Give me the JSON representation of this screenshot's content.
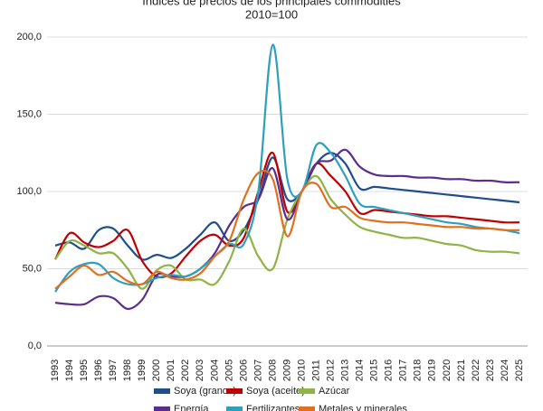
{
  "chart_data": {
    "type": "line",
    "title": "Índices de precios de los principales commodities",
    "subtitle": "2010=100",
    "categories": [
      "1993",
      "1994",
      "1995",
      "1996",
      "1997",
      "1998",
      "1999",
      "2000",
      "2001",
      "2002",
      "2003",
      "2004",
      "2005",
      "2006",
      "2007",
      "2008",
      "2009",
      "2010",
      "2011",
      "2012",
      "2013",
      "2014",
      "2015",
      "2016",
      "2017",
      "2018",
      "2019",
      "2020",
      "2021",
      "2022",
      "2023",
      "2024",
      "2025"
    ],
    "ylim": [
      0,
      200
    ],
    "yticks": [
      {
        "value": 0,
        "label": "0,0"
      },
      {
        "value": 50,
        "label": "50,0"
      },
      {
        "value": 100,
        "label": "100,0"
      },
      {
        "value": 150,
        "label": "150,0"
      },
      {
        "value": 200,
        "label": "200,0"
      }
    ],
    "grid": true,
    "legend": "bottom",
    "series": [
      {
        "name": "Soya (granos)",
        "color": "#1f4e8c",
        "values": [
          65,
          67,
          63,
          75,
          76,
          65,
          56,
          59,
          57,
          63,
          72,
          80,
          68,
          75,
          95,
          122,
          95,
          100,
          118,
          125,
          118,
          102,
          103,
          102,
          101,
          100,
          99,
          98,
          97,
          96,
          95,
          94,
          93
        ]
      },
      {
        "name": "Soya (aceite)",
        "color": "#c00000",
        "values": [
          56,
          73,
          67,
          64,
          68,
          75,
          55,
          45,
          47,
          58,
          68,
          72,
          65,
          70,
          100,
          125,
          87,
          100,
          118,
          110,
          100,
          86,
          88,
          87,
          86,
          85,
          84,
          84,
          83,
          82,
          81,
          80,
          80
        ]
      },
      {
        "name": "Azúcar",
        "color": "#8db444",
        "values": [
          56,
          68,
          65,
          60,
          60,
          50,
          37,
          49,
          52,
          43,
          43,
          40,
          55,
          76,
          58,
          50,
          82,
          100,
          110,
          95,
          85,
          77,
          74,
          72,
          70,
          70,
          68,
          66,
          65,
          62,
          61,
          61,
          60
        ]
      },
      {
        "name": "Energía",
        "color": "#5b2d8e",
        "values": [
          28,
          27,
          27,
          32,
          31,
          24,
          30,
          46,
          45,
          45,
          50,
          60,
          78,
          90,
          95,
          115,
          82,
          100,
          118,
          120,
          127,
          116,
          111,
          110,
          110,
          109,
          109,
          108,
          108,
          107,
          107,
          106,
          106
        ]
      },
      {
        "name": "Fertilizantes",
        "color": "#2e9fbf",
        "values": [
          35,
          48,
          53,
          53,
          44,
          40,
          40,
          44,
          46,
          45,
          50,
          58,
          66,
          66,
          100,
          195,
          108,
          100,
          130,
          125,
          110,
          92,
          90,
          88,
          86,
          84,
          82,
          80,
          79,
          77,
          76,
          75,
          73
        ]
      },
      {
        "name": "Metales y minerales",
        "color": "#e07020",
        "values": [
          37,
          45,
          52,
          46,
          48,
          42,
          40,
          48,
          44,
          43,
          47,
          58,
          68,
          95,
          112,
          108,
          71,
          100,
          105,
          90,
          90,
          83,
          81,
          80,
          80,
          79,
          78,
          77,
          77,
          76,
          76,
          75,
          75
        ]
      }
    ]
  }
}
